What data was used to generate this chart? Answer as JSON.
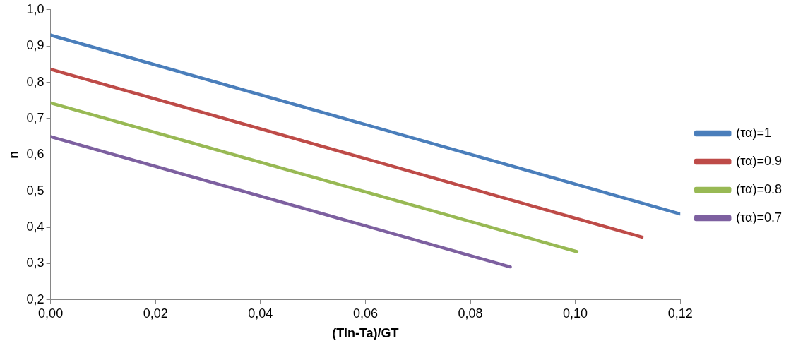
{
  "chart_data": {
    "type": "line",
    "xlabel": "(Tin-Ta)/GT",
    "ylabel": "n",
    "xlim": [
      0,
      0.12
    ],
    "ylim": [
      0.2,
      1.0
    ],
    "xticks": [
      {
        "value": 0,
        "label": "0,00"
      },
      {
        "value": 0.02,
        "label": "0,02"
      },
      {
        "value": 0.04,
        "label": "0,04"
      },
      {
        "value": 0.06,
        "label": "0,06"
      },
      {
        "value": 0.08,
        "label": "0,08"
      },
      {
        "value": 0.1,
        "label": "0,10"
      },
      {
        "value": 0.12,
        "label": "0,12"
      }
    ],
    "yticks": [
      {
        "value": 0.2,
        "label": "0,2"
      },
      {
        "value": 0.3,
        "label": "0,3"
      },
      {
        "value": 0.4,
        "label": "0,4"
      },
      {
        "value": 0.5,
        "label": "0,5"
      },
      {
        "value": 0.6,
        "label": "0,6"
      },
      {
        "value": 0.7,
        "label": "0,7"
      },
      {
        "value": 0.8,
        "label": "0,8"
      },
      {
        "value": 0.9,
        "label": "0,9"
      },
      {
        "value": 1.0,
        "label": "1,0"
      }
    ],
    "grid": false,
    "legend": "right",
    "marker": "none",
    "line_style": "solid",
    "series": [
      {
        "name": "(τα)=1",
        "color": "#4a7ebb",
        "x": [
          0,
          0.12
        ],
        "values": [
          0.93,
          0.437
        ]
      },
      {
        "name": "(τα)=0.9",
        "color": "#be4b48",
        "x": [
          0,
          0.1127
        ],
        "values": [
          0.836,
          0.373
        ]
      },
      {
        "name": "(τα)=0.8",
        "color": "#98b954",
        "x": [
          0,
          0.1003
        ],
        "values": [
          0.743,
          0.333
        ]
      },
      {
        "name": "(τα)=0.7",
        "color": "#7d60a0",
        "x": [
          0,
          0.0876
        ],
        "values": [
          0.65,
          0.291
        ]
      }
    ]
  }
}
